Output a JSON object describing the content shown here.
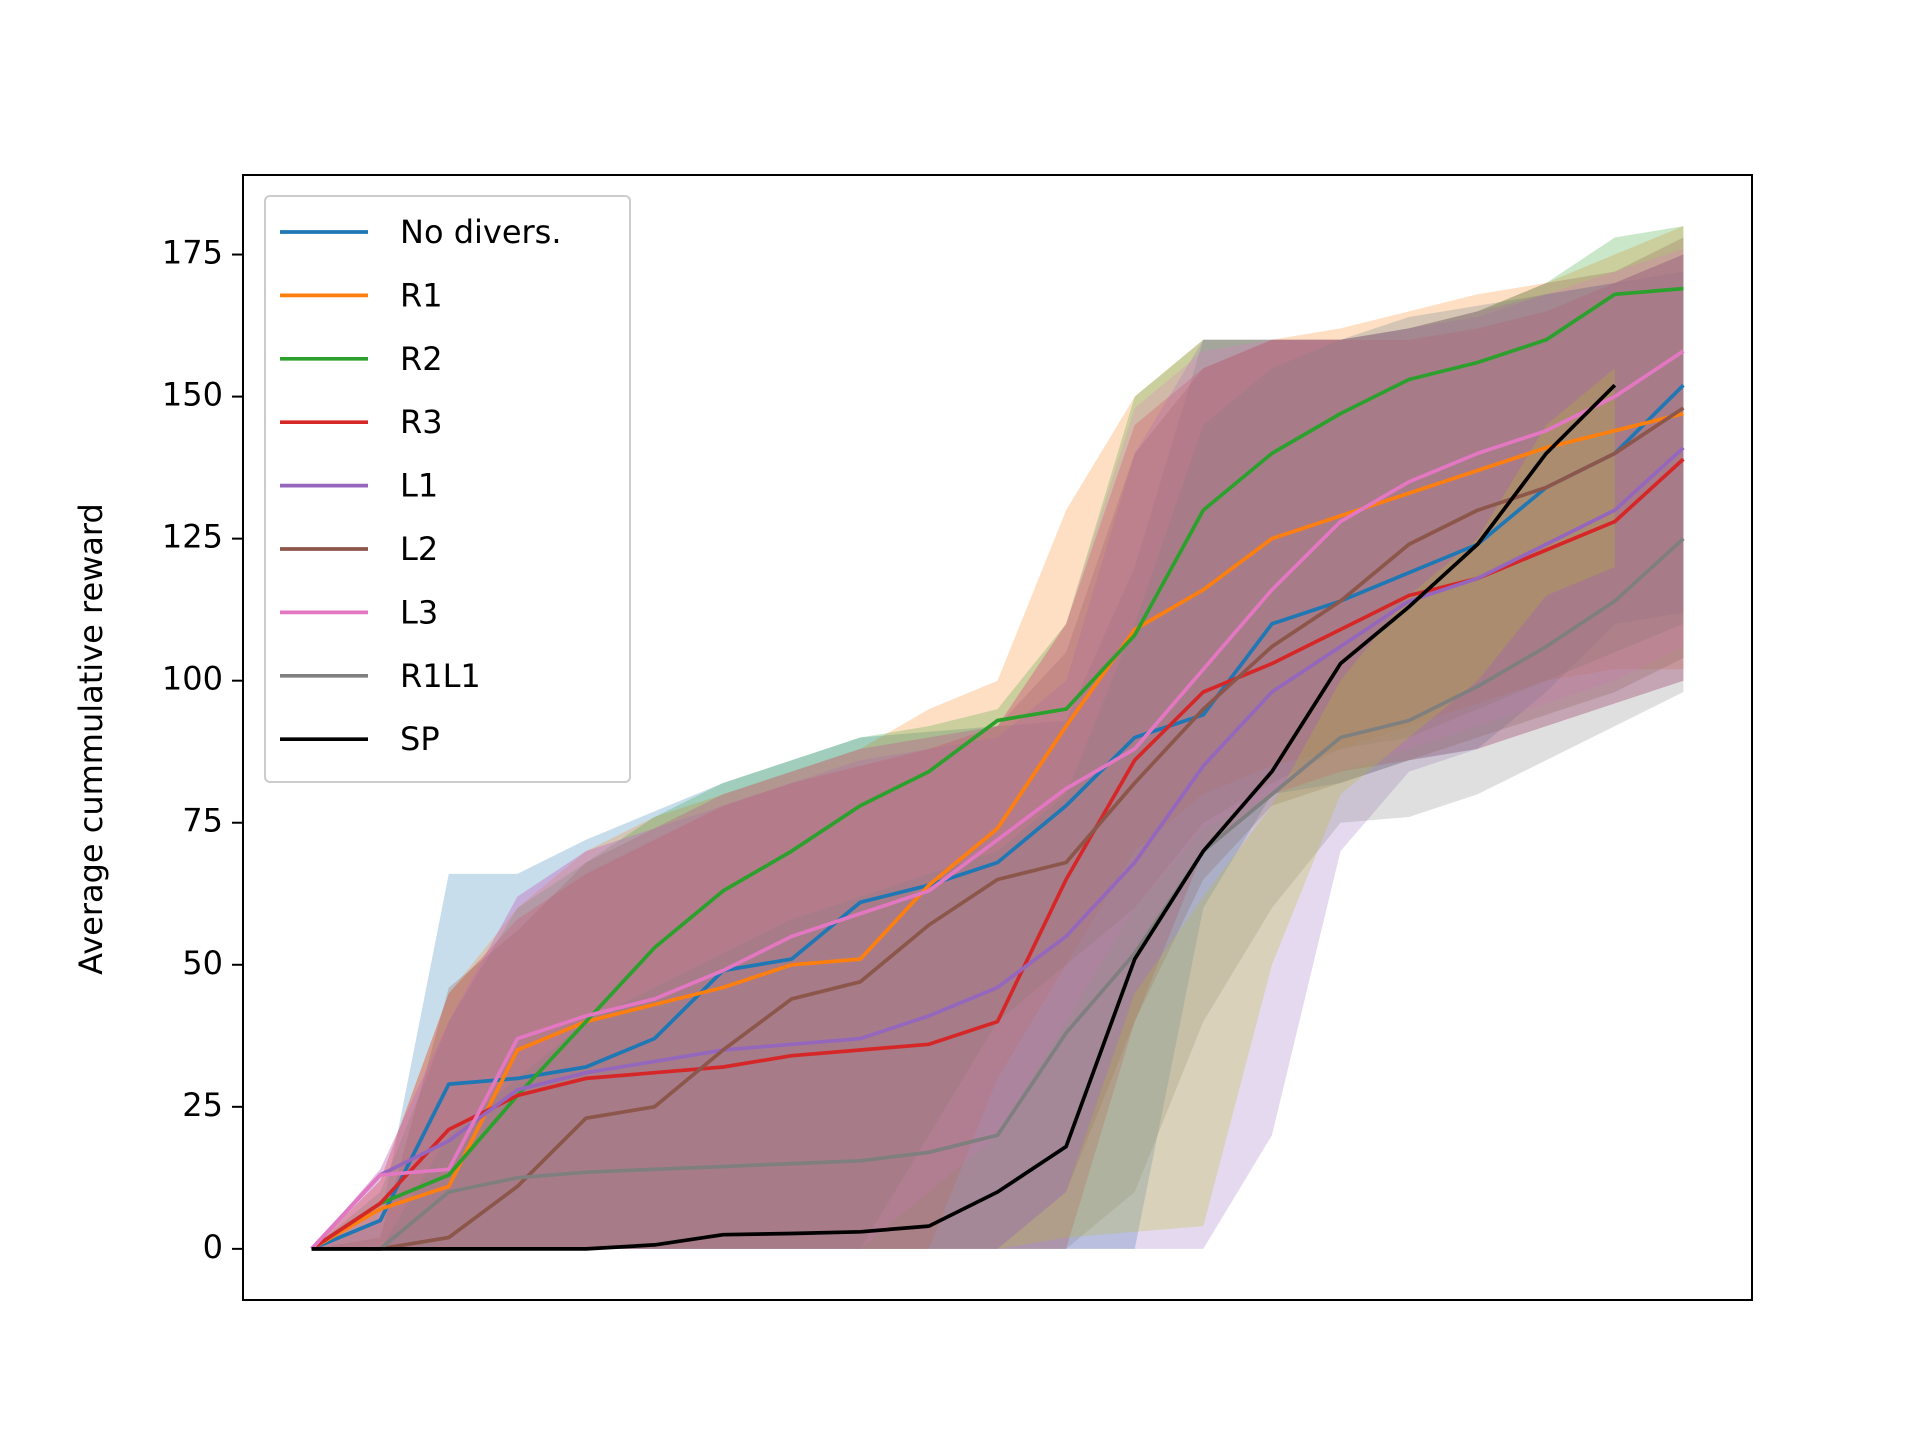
{
  "chart_data": {
    "type": "line",
    "y_label": "Average cummulative reward",
    "x": [
      0,
      1,
      2,
      3,
      4,
      5,
      6,
      7,
      8,
      9,
      10,
      11,
      12,
      13,
      14,
      15,
      16,
      17,
      18,
      19,
      20
    ],
    "xlim": [
      -1,
      21
    ],
    "ylim": [
      -9,
      189
    ],
    "yticks": [
      0,
      25,
      50,
      75,
      100,
      125,
      150,
      175
    ],
    "grid": false,
    "legend": "upper left",
    "series": [
      {
        "name": "No divers.",
        "color": "#1f77b4",
        "band_color": "#1f77b4",
        "values": [
          0,
          5,
          29,
          30,
          32,
          37,
          49,
          51,
          61,
          64,
          68,
          78,
          90,
          94,
          110,
          114,
          119,
          124,
          134,
          140,
          152
        ],
        "upper": [
          0,
          5,
          66,
          66,
          72,
          77,
          82,
          86,
          90,
          91,
          92,
          93,
          120,
          160,
          160,
          160,
          164,
          166,
          168,
          170,
          172
        ],
        "lower": [
          0,
          0,
          0,
          0,
          0,
          0,
          0,
          0,
          0,
          0,
          0,
          0,
          0,
          60,
          80,
          82,
          86,
          88,
          98,
          110,
          112
        ]
      },
      {
        "name": "R1",
        "color": "#ff7f0e",
        "band_color": "#ff7f0e",
        "values": [
          0,
          7,
          11,
          35,
          40,
          43,
          46,
          50,
          51,
          64,
          74,
          92,
          109,
          116,
          125,
          129,
          133,
          137,
          141,
          144,
          147
        ],
        "upper": [
          0,
          12,
          45,
          60,
          70,
          76,
          80,
          84,
          88,
          95,
          100,
          130,
          150,
          160,
          160,
          162,
          165,
          168,
          170,
          175,
          180
        ],
        "lower": [
          0,
          0,
          0,
          0,
          0,
          0,
          0,
          0,
          0,
          0,
          30,
          50,
          70,
          80,
          85,
          88,
          92,
          96,
          100,
          102,
          102
        ]
      },
      {
        "name": "R2",
        "color": "#2ca02c",
        "band_color": "#2ca02c",
        "values": [
          0,
          8,
          13,
          27,
          40,
          53,
          63,
          70,
          78,
          84,
          93,
          95,
          108,
          130,
          140,
          147,
          153,
          156,
          160,
          168,
          169
        ],
        "upper": [
          0,
          10,
          40,
          60,
          68,
          76,
          82,
          86,
          90,
          92,
          95,
          110,
          150,
          160,
          160,
          160,
          162,
          165,
          170,
          178,
          180
        ],
        "lower": [
          0,
          0,
          0,
          0,
          0,
          0,
          0,
          0,
          0,
          20,
          40,
          50,
          60,
          75,
          82,
          88,
          90,
          95,
          100,
          105,
          110
        ]
      },
      {
        "name": "R3",
        "color": "#d62728",
        "band_color": "#d62728",
        "values": [
          0,
          8,
          21,
          27,
          30,
          31,
          32,
          34,
          35,
          36,
          40,
          65,
          86,
          98,
          103,
          109,
          115,
          118,
          123,
          128,
          139
        ],
        "upper": [
          0,
          12,
          45,
          58,
          66,
          72,
          78,
          82,
          85,
          88,
          92,
          110,
          145,
          155,
          160,
          160,
          160,
          162,
          165,
          170,
          175
        ],
        "lower": [
          0,
          0,
          0,
          0,
          0,
          0,
          0,
          0,
          0,
          0,
          0,
          0,
          40,
          70,
          80,
          84,
          86,
          88,
          92,
          96,
          100
        ]
      },
      {
        "name": "L1",
        "color": "#9467bd",
        "band_color": "#9467bd",
        "values": [
          0,
          13,
          19,
          28,
          31,
          33,
          35,
          36,
          37,
          41,
          46,
          55,
          68,
          85,
          98,
          106,
          114,
          118,
          124,
          130,
          141
        ],
        "upper": [
          0,
          14,
          40,
          62,
          70,
          74,
          78,
          82,
          86,
          88,
          90,
          100,
          140,
          160,
          160,
          160,
          162,
          164,
          168,
          170,
          175
        ],
        "lower": [
          0,
          0,
          0,
          0,
          0,
          0,
          0,
          0,
          0,
          0,
          0,
          0,
          0,
          0,
          20,
          70,
          84,
          88,
          92,
          96,
          100
        ]
      },
      {
        "name": "L2",
        "color": "#8c564b",
        "band_color": "#8c564b",
        "values": [
          0,
          0,
          2,
          11,
          23,
          25,
          35,
          44,
          47,
          57,
          65,
          68,
          82,
          95,
          106,
          114,
          124,
          130,
          134,
          140,
          148
        ],
        "upper": [
          0,
          2,
          46,
          56,
          68,
          74,
          80,
          84,
          88,
          90,
          92,
          105,
          140,
          155,
          160,
          160,
          162,
          165,
          170,
          172,
          178
        ],
        "lower": [
          0,
          0,
          0,
          0,
          0,
          0,
          0,
          0,
          0,
          0,
          0,
          10,
          40,
          65,
          78,
          82,
          86,
          90,
          94,
          98,
          104
        ]
      },
      {
        "name": "L3",
        "color": "#e377c2",
        "band_color": "#e377c2",
        "values": [
          0,
          13,
          14,
          37,
          41,
          44,
          49,
          55,
          59,
          63,
          72,
          81,
          88,
          102,
          116,
          128,
          135,
          140,
          144,
          150,
          158
        ],
        "upper": [
          0,
          14,
          40,
          62,
          70,
          74,
          80,
          84,
          88,
          90,
          92,
          110,
          148,
          158,
          160,
          160,
          162,
          165,
          168,
          172,
          176
        ],
        "lower": [
          0,
          0,
          0,
          0,
          0,
          0,
          0,
          0,
          0,
          10,
          20,
          40,
          60,
          74,
          80,
          84,
          88,
          92,
          96,
          100,
          106
        ]
      },
      {
        "name": "R1L1",
        "color": "#7f7f7f",
        "band_color": "#7f7f7f",
        "values": [
          0,
          0,
          10,
          12.5,
          13.5,
          14,
          14.5,
          15,
          15.5,
          17,
          20,
          38,
          52,
          70,
          80,
          90,
          93,
          99,
          106,
          114,
          125
        ],
        "upper": [
          0,
          0,
          20,
          30,
          40,
          46,
          52,
          58,
          62,
          66,
          70,
          80,
          110,
          145,
          155,
          160,
          162,
          165,
          168,
          170,
          175
        ],
        "lower": [
          0,
          0,
          0,
          0,
          0,
          0,
          0,
          0,
          0,
          0,
          0,
          0,
          10,
          40,
          60,
          75,
          76,
          80,
          86,
          92,
          98
        ]
      },
      {
        "name": "SP",
        "color": "#000000",
        "band_color": "#bcbd22",
        "values": [
          0,
          0,
          0,
          0,
          0,
          0.7,
          2.5,
          2.7,
          3,
          4,
          10,
          18,
          51,
          70,
          84,
          103,
          113,
          124,
          140,
          152,
          null
        ],
        "upper": [
          0,
          0,
          0,
          0,
          0,
          0,
          0,
          0,
          0,
          0,
          0,
          10,
          45,
          62,
          78,
          100,
          115,
          125,
          145,
          155,
          null
        ],
        "lower": [
          0,
          0,
          0,
          0,
          0,
          0,
          0,
          0,
          0,
          0,
          0,
          2,
          3,
          4,
          50,
          80,
          90,
          100,
          115,
          120,
          null
        ]
      }
    ]
  }
}
